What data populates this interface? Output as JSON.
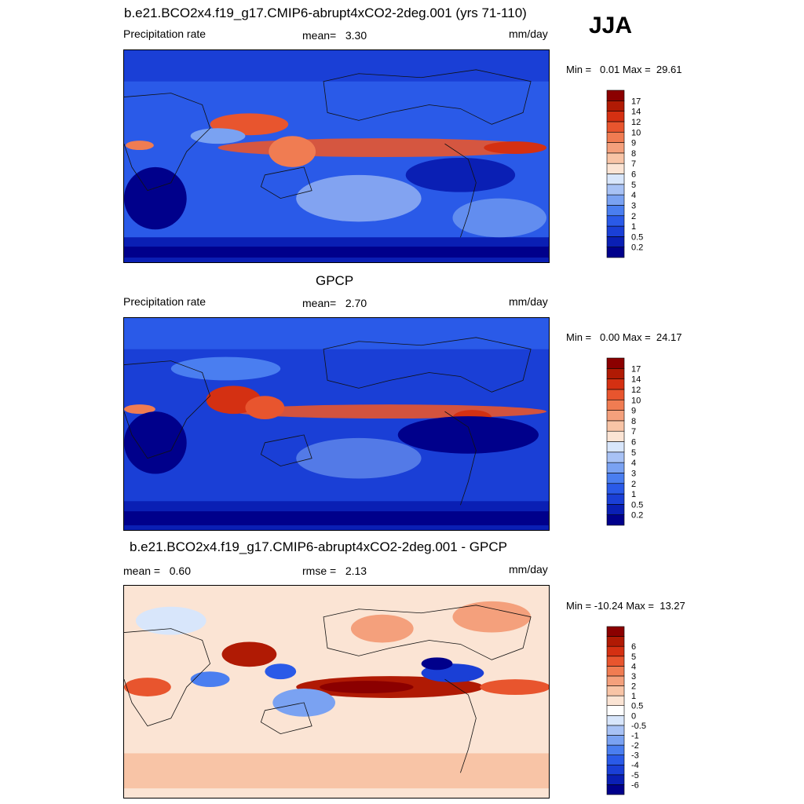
{
  "season": "JJA",
  "panels": [
    {
      "title": "b.e21.BCO2x4.f19_g17.CMIP6-abrupt4xCO2-2deg.001 (yrs 71-110)",
      "left_label": "Precipitation rate",
      "mid_label": "mean=   3.30",
      "units": "mm/day",
      "minmax": "Min =   0.01 Max =  29.61"
    },
    {
      "title": "GPCP",
      "left_label": "Precipitation rate",
      "mid_label": "mean=   2.70",
      "units": "mm/day",
      "minmax": "Min =   0.00 Max =  24.17"
    },
    {
      "title": "b.e21.BCO2x4.f19_g17.CMIP6-abrupt4xCO2-2deg.001 - GPCP",
      "left_label": "mean =   0.60",
      "mid_label": "rmse =   2.13",
      "units": "mm/day",
      "minmax": "Min = -10.24 Max =  13.27"
    }
  ],
  "colors": {
    "precip_scale": [
      "#00008b",
      "#0a1fb4",
      "#1a3fd6",
      "#2a5ae8",
      "#4a7ef0",
      "#7aa2f2",
      "#a8c2f5",
      "#d8e6fb",
      "#fbe4d4",
      "#f8c4a6",
      "#f4a07c",
      "#f07c52",
      "#e8552e",
      "#d43012",
      "#b01a04",
      "#8b0000"
    ],
    "diff_scale": [
      "#00008b",
      "#0a1fb4",
      "#1a3fd6",
      "#2a5ae8",
      "#4a7ef0",
      "#7aa2f2",
      "#a8c2f5",
      "#d8e6fb",
      "#ffffff",
      "#fbe4d4",
      "#f8c4a6",
      "#f4a07c",
      "#f07c52",
      "#e8552e",
      "#d43012",
      "#b01a04",
      "#8b0000"
    ]
  },
  "chart_data": [
    {
      "type": "heatmap",
      "projection": "global lat-lon, 0-360 longitude centered on Pacific",
      "title": "b.e21.BCO2x4.f19_g17.CMIP6-abrupt4xCO2-2deg.001 (yrs 71-110)",
      "variable": "Precipitation rate",
      "units": "mm/day",
      "mean": 3.3,
      "min": 0.01,
      "max": 29.61,
      "colorbar_labels": [
        "0.2",
        "0.5",
        "1",
        "2",
        "3",
        "4",
        "5",
        "6",
        "7",
        "8",
        "9",
        "10",
        "12",
        "14",
        "17"
      ]
    },
    {
      "type": "heatmap",
      "projection": "global lat-lon, 0-360 longitude centered on Pacific",
      "title": "GPCP",
      "variable": "Precipitation rate",
      "units": "mm/day",
      "mean": 2.7,
      "min": 0.0,
      "max": 24.17,
      "colorbar_labels": [
        "0.2",
        "0.5",
        "1",
        "2",
        "3",
        "4",
        "5",
        "6",
        "7",
        "8",
        "9",
        "10",
        "12",
        "14",
        "17"
      ]
    },
    {
      "type": "heatmap",
      "projection": "global lat-lon, 0-360 longitude centered on Pacific",
      "title": "b.e21.BCO2x4.f19_g17.CMIP6-abrupt4xCO2-2deg.001 - GPCP",
      "units": "mm/day",
      "mean": 0.6,
      "rmse": 2.13,
      "min": -10.24,
      "max": 13.27,
      "colorbar_labels": [
        "-6",
        "-5",
        "-4",
        "-3",
        "-2",
        "-1",
        "-0.5",
        "0",
        "0.5",
        "1",
        "2",
        "3",
        "4",
        "5",
        "6"
      ]
    }
  ]
}
